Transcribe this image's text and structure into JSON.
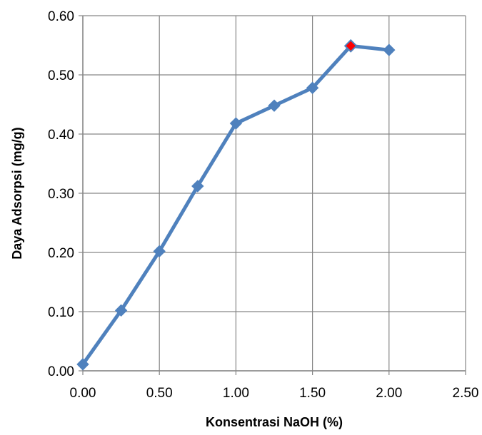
{
  "chart_data": {
    "type": "line",
    "title": "",
    "xlabel": "Konsentrasi NaOH (%)",
    "ylabel": "Daya Adsorpsi (mg/g)",
    "xlim": [
      0,
      2.5
    ],
    "ylim": [
      0,
      0.6
    ],
    "x_ticks": [
      "0.00",
      "0.50",
      "1.00",
      "1.50",
      "2.00",
      "2.50"
    ],
    "y_ticks": [
      "0.00",
      "0.10",
      "0.20",
      "0.30",
      "0.40",
      "0.50",
      "0.60"
    ],
    "grid": true,
    "legend": "none",
    "series": [
      {
        "x": [
          0,
          0.25,
          0.5,
          0.75,
          1.0,
          1.25,
          1.5,
          1.75,
          2.0
        ],
        "values": [
          0.011,
          0.102,
          0.202,
          0.312,
          0.418,
          0.448,
          0.478,
          0.549,
          0.542
        ],
        "color": "#4F81BD",
        "marker": "diamond",
        "highlight_index": 7,
        "highlight_color": "#FF0000"
      }
    ]
  }
}
